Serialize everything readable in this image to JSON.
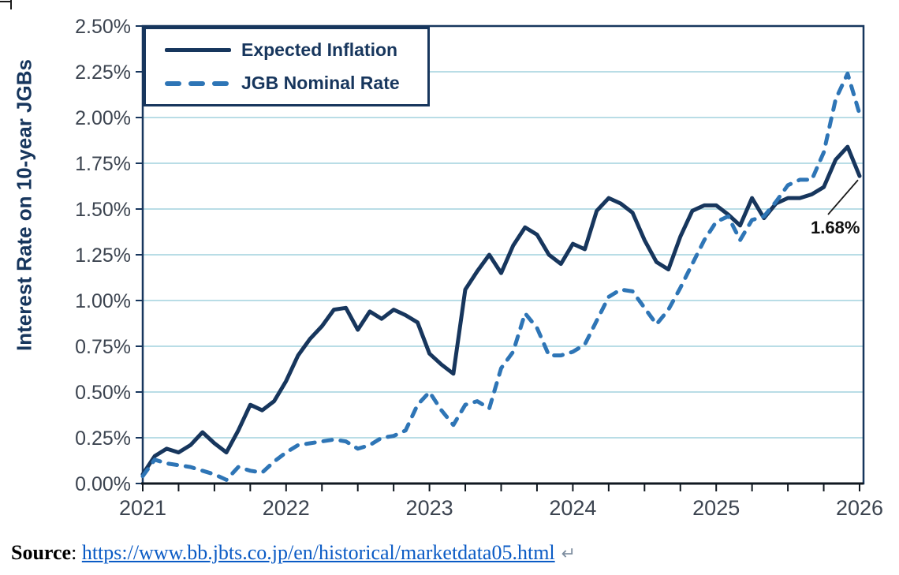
{
  "page": {
    "background_color": "#ffffff"
  },
  "chart": {
    "y_axis_title": "Interest Rate on 10-year JGBs",
    "legend": {
      "items": [
        {
          "label": "Expected Inflation"
        },
        {
          "label": "JGB Nominal Rate"
        }
      ]
    },
    "annotation": {
      "text": "1.68%"
    }
  },
  "chart_data": {
    "type": "line",
    "title": "",
    "xlabel": "",
    "ylabel": "Interest Rate on 10-year JGBs",
    "ylim": [
      0,
      2.5
    ],
    "ytick_step": 0.25,
    "ytick_labels": [
      "0.00%",
      "0.25%",
      "0.50%",
      "0.75%",
      "1.00%",
      "1.25%",
      "1.50%",
      "1.75%",
      "2.00%",
      "2.25%",
      "2.50%"
    ],
    "xtick_labels": [
      "2021",
      "2022",
      "2023",
      "2024",
      "2025",
      "2026"
    ],
    "x_frequency": "monthly",
    "x_start": "2021-01",
    "x_end": "2026-01",
    "grid": "horizontal",
    "legend_position": "top-left",
    "colors": {
      "expected_inflation": "#17365d",
      "jgb_nominal": "#2e75b6",
      "gridline": "#b9dde6",
      "axis": "#17365d",
      "x_axis_line": "#101820"
    },
    "annotation": {
      "text": "1.68%",
      "attached_to": "final Expected Inflation point (Jan 2026)",
      "value": 1.68
    },
    "series": [
      {
        "name": "Expected Inflation",
        "line_style": "solid",
        "color": "#17365d",
        "values": [
          0.05,
          0.15,
          0.19,
          0.17,
          0.21,
          0.28,
          0.22,
          0.17,
          0.29,
          0.43,
          0.4,
          0.45,
          0.56,
          0.7,
          0.79,
          0.86,
          0.95,
          0.96,
          0.84,
          0.94,
          0.9,
          0.95,
          0.92,
          0.88,
          0.71,
          0.65,
          0.6,
          1.06,
          1.16,
          1.25,
          1.15,
          1.3,
          1.4,
          1.36,
          1.25,
          1.2,
          1.31,
          1.28,
          1.49,
          1.56,
          1.53,
          1.48,
          1.33,
          1.21,
          1.17,
          1.35,
          1.49,
          1.52,
          1.52,
          1.47,
          1.41,
          1.56,
          1.45,
          1.53,
          1.56,
          1.56,
          1.58,
          1.62,
          1.77,
          1.84,
          1.68
        ]
      },
      {
        "name": "JGB Nominal Rate",
        "line_style": "dashed",
        "color": "#2e75b6",
        "values": [
          0.04,
          0.13,
          0.11,
          0.1,
          0.09,
          0.07,
          0.05,
          0.02,
          0.09,
          0.07,
          0.06,
          0.12,
          0.17,
          0.21,
          0.22,
          0.23,
          0.24,
          0.23,
          0.19,
          0.21,
          0.25,
          0.26,
          0.29,
          0.43,
          0.5,
          0.4,
          0.32,
          0.43,
          0.45,
          0.41,
          0.63,
          0.72,
          0.93,
          0.85,
          0.7,
          0.7,
          0.72,
          0.76,
          0.89,
          1.02,
          1.06,
          1.05,
          0.96,
          0.87,
          0.95,
          1.07,
          1.2,
          1.33,
          1.43,
          1.46,
          1.33,
          1.44,
          1.46,
          1.54,
          1.63,
          1.66,
          1.66,
          1.81,
          2.1,
          2.24,
          2.02
        ]
      }
    ]
  },
  "source": {
    "label": "Source",
    "separator": ": ",
    "link_text": "https://www.bb.jbts.co.jp/en/historical/marketdata05.html",
    "return_mark": "↵",
    "link_color": "#0b5bc5"
  }
}
